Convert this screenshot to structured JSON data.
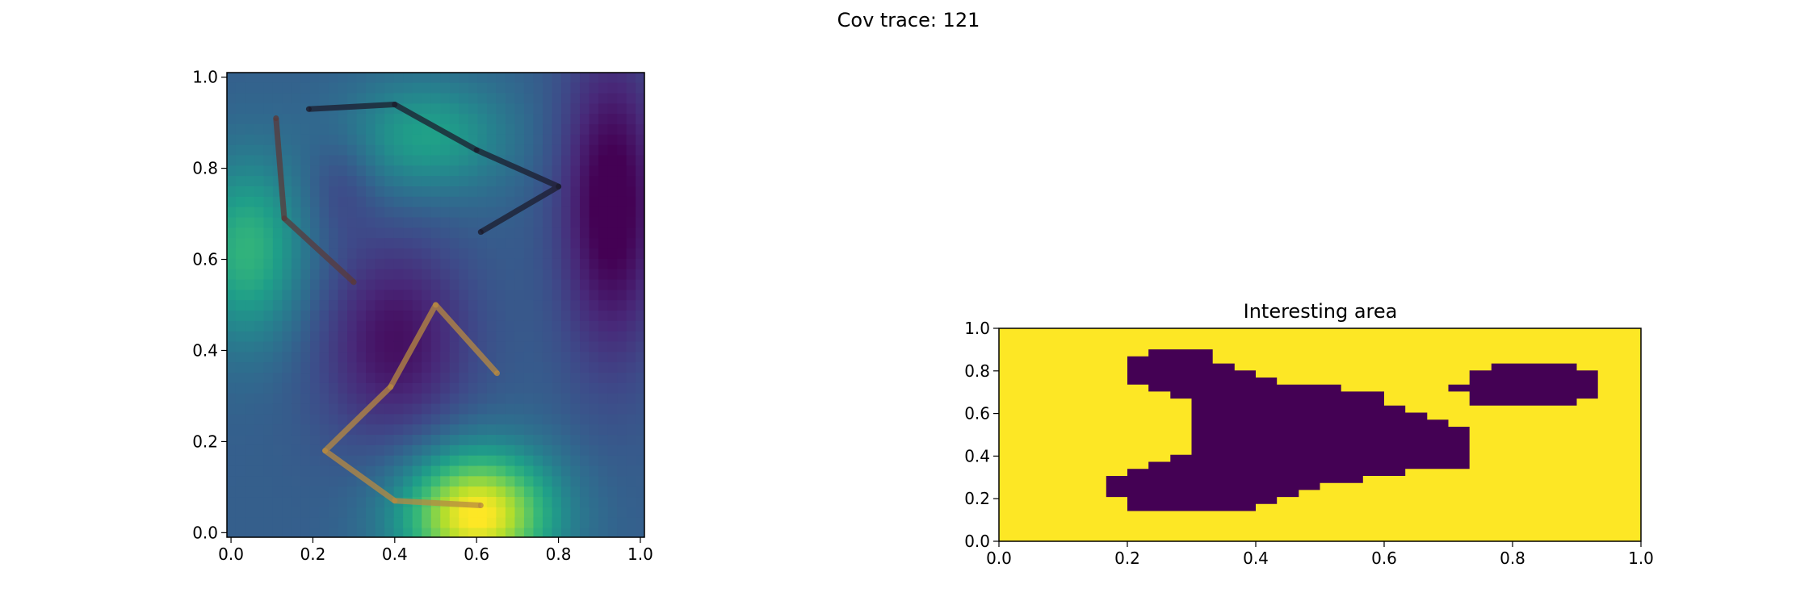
{
  "figure": {
    "suptitle": "Cov trace: 121"
  },
  "chart_data": [
    {
      "type": "heatmap",
      "title": "",
      "xlabel": "",
      "ylabel": "",
      "xlim": [
        -0.01,
        1.01
      ],
      "ylim": [
        -0.01,
        1.01
      ],
      "x_ticks": [
        "0.0",
        "0.2",
        "0.4",
        "0.6",
        "0.8",
        "1.0"
      ],
      "y_ticks": [
        "0.0",
        "0.2",
        "0.4",
        "0.6",
        "0.8",
        "1.0"
      ],
      "colormap": "viridis",
      "field_description": "smooth scalar field with a high peak near (0.6, 0.05), secondary highs near (0.05, 0.62) and (0.48, 0.87), lows near (0.92, 0.72) and (0.4, 0.42)",
      "trajectories": [
        {
          "color": "#1c1c2c",
          "points": [
            [
              0.19,
              0.93
            ],
            [
              0.4,
              0.94
            ],
            [
              0.6,
              0.84
            ],
            [
              0.8,
              0.76
            ],
            [
              0.61,
              0.66
            ]
          ]
        },
        {
          "color": "#5a3a3a",
          "points": [
            [
              0.11,
              0.91
            ],
            [
              0.13,
              0.69
            ],
            [
              0.3,
              0.55
            ]
          ]
        },
        {
          "color": "#b88a40",
          "points": [
            [
              0.65,
              0.35
            ],
            [
              0.5,
              0.5
            ],
            [
              0.39,
              0.32
            ],
            [
              0.23,
              0.18
            ],
            [
              0.4,
              0.07
            ],
            [
              0.61,
              0.06
            ]
          ]
        }
      ]
    },
    {
      "type": "heatmap",
      "title": "Interesting area",
      "xlabel": "",
      "ylabel": "",
      "xlim": [
        0.0,
        1.0
      ],
      "ylim": [
        0.0,
        1.0
      ],
      "x_ticks": [
        "0.0",
        "0.2",
        "0.4",
        "0.6",
        "0.8",
        "1.0"
      ],
      "y_ticks": [
        "0.0",
        "0.2",
        "0.4",
        "0.6",
        "0.8",
        "1.0"
      ],
      "colors": {
        "background": "#fde725",
        "region": "#440154"
      },
      "regions": [
        [
          [
            0.2,
            0.736
          ],
          [
            0.2,
            0.868
          ],
          [
            0.233,
            0.868
          ],
          [
            0.233,
            0.901
          ],
          [
            0.333,
            0.901
          ],
          [
            0.333,
            0.835
          ],
          [
            0.367,
            0.835
          ],
          [
            0.367,
            0.802
          ],
          [
            0.4,
            0.802
          ],
          [
            0.4,
            0.769
          ],
          [
            0.433,
            0.769
          ],
          [
            0.433,
            0.736
          ],
          [
            0.533,
            0.736
          ],
          [
            0.533,
            0.703
          ],
          [
            0.6,
            0.703
          ],
          [
            0.6,
            0.637
          ],
          [
            0.633,
            0.637
          ],
          [
            0.633,
            0.604
          ],
          [
            0.667,
            0.604
          ],
          [
            0.667,
            0.571
          ],
          [
            0.7,
            0.571
          ],
          [
            0.7,
            0.538
          ],
          [
            0.733,
            0.538
          ],
          [
            0.733,
            0.34
          ],
          [
            0.633,
            0.34
          ],
          [
            0.633,
            0.307
          ],
          [
            0.567,
            0.307
          ],
          [
            0.567,
            0.274
          ],
          [
            0.5,
            0.274
          ],
          [
            0.5,
            0.241
          ],
          [
            0.467,
            0.241
          ],
          [
            0.467,
            0.208
          ],
          [
            0.433,
            0.208
          ],
          [
            0.433,
            0.175
          ],
          [
            0.4,
            0.175
          ],
          [
            0.4,
            0.142
          ],
          [
            0.2,
            0.142
          ],
          [
            0.2,
            0.208
          ],
          [
            0.167,
            0.208
          ],
          [
            0.167,
            0.307
          ],
          [
            0.2,
            0.307
          ],
          [
            0.2,
            0.34
          ],
          [
            0.233,
            0.34
          ],
          [
            0.233,
            0.373
          ],
          [
            0.267,
            0.373
          ],
          [
            0.267,
            0.406
          ],
          [
            0.3,
            0.406
          ],
          [
            0.3,
            0.67
          ],
          [
            0.267,
            0.67
          ],
          [
            0.267,
            0.703
          ],
          [
            0.233,
            0.703
          ],
          [
            0.233,
            0.736
          ]
        ],
        [
          [
            0.7,
            0.703
          ],
          [
            0.7,
            0.736
          ],
          [
            0.733,
            0.736
          ],
          [
            0.733,
            0.802
          ],
          [
            0.767,
            0.802
          ],
          [
            0.767,
            0.835
          ],
          [
            0.9,
            0.835
          ],
          [
            0.9,
            0.802
          ],
          [
            0.933,
            0.802
          ],
          [
            0.933,
            0.67
          ],
          [
            0.9,
            0.67
          ],
          [
            0.9,
            0.637
          ],
          [
            0.733,
            0.637
          ],
          [
            0.733,
            0.703
          ]
        ]
      ]
    }
  ]
}
